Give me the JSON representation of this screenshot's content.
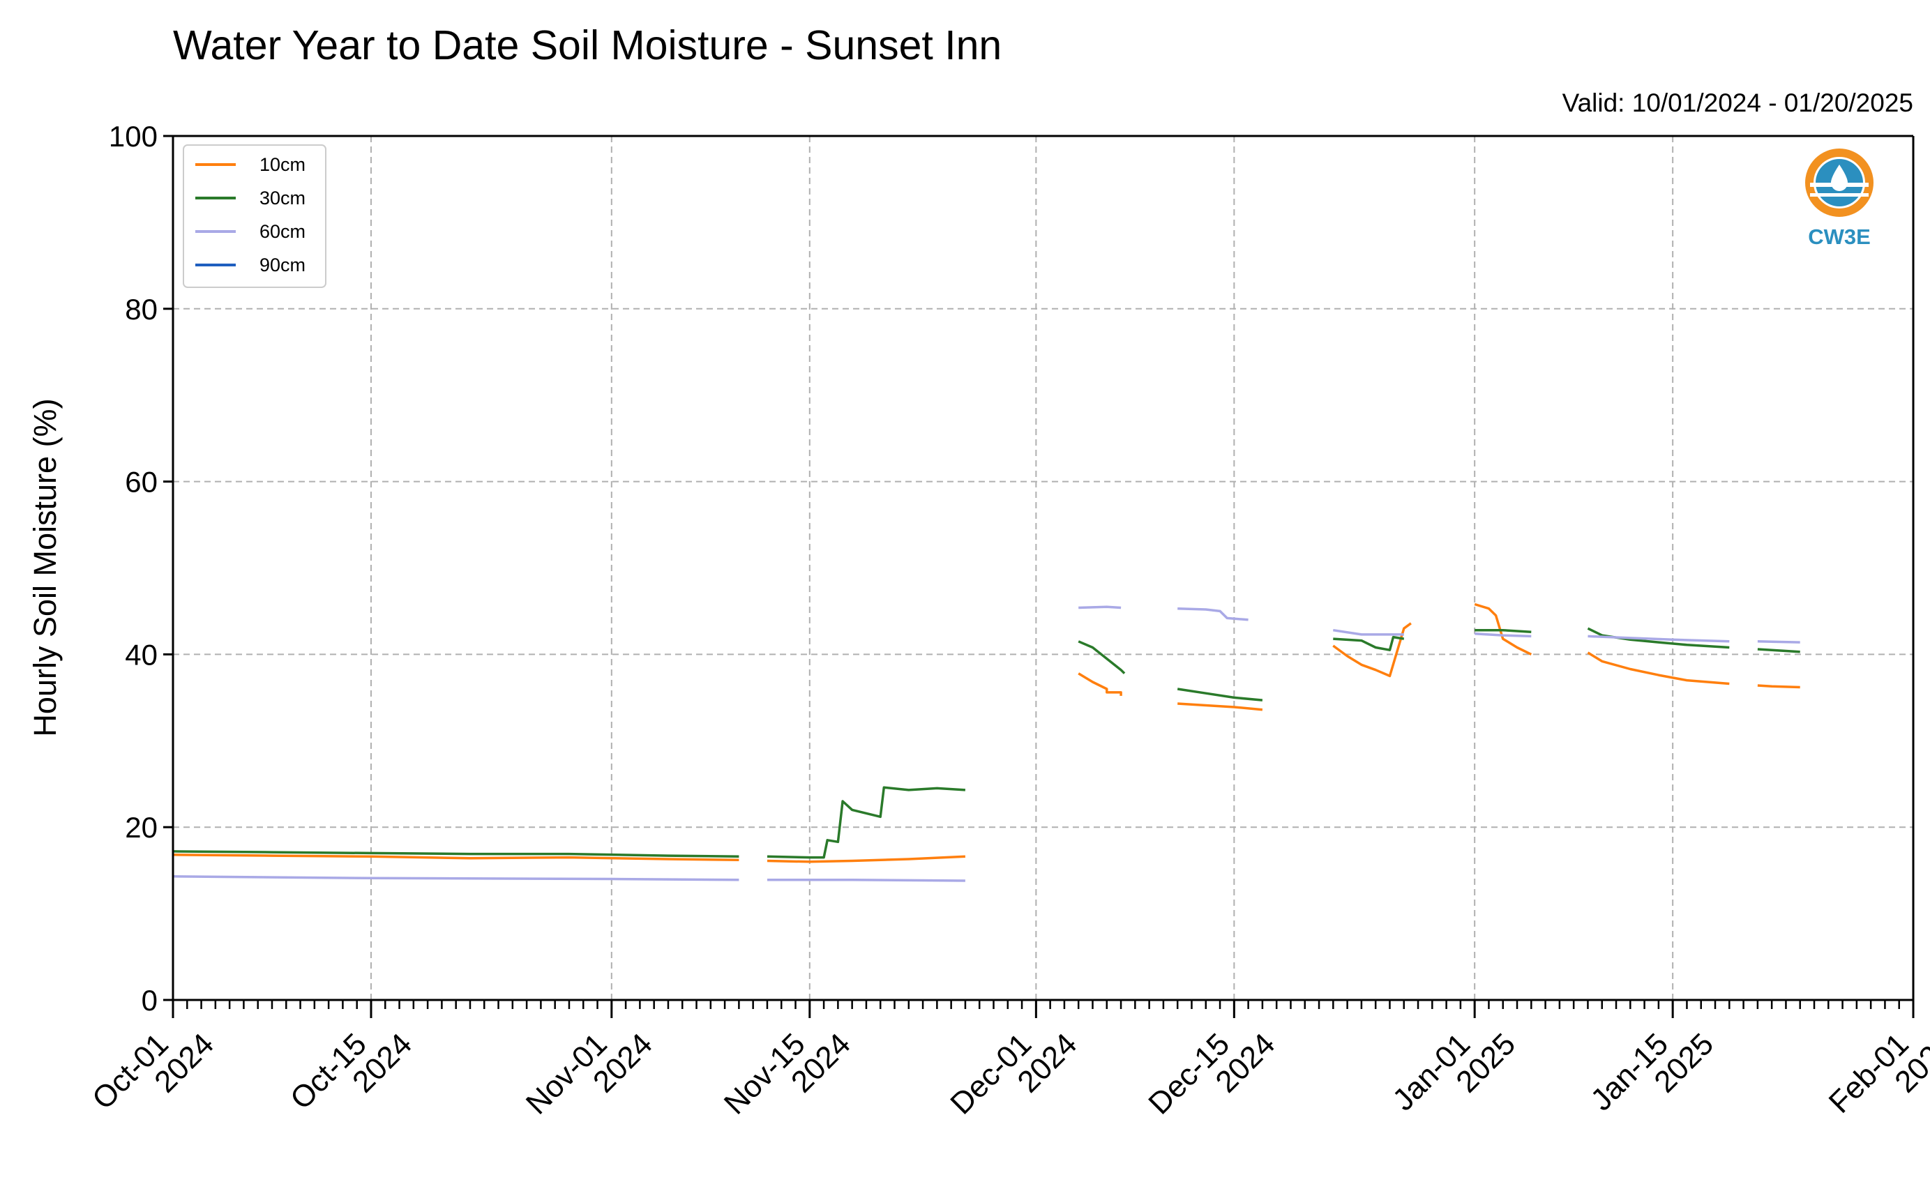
{
  "chart_data": {
    "type": "line",
    "title": "Water Year to Date Soil Moisture - Sunset Inn",
    "subtitle": "Valid: 10/01/2024 - 01/20/2025",
    "ylabel": "Hourly Soil Moisture (%)",
    "xlabel": "",
    "ylim": [
      0,
      100
    ],
    "xlim": [
      "2024-10-01",
      "2025-02-01"
    ],
    "yticks": [
      0,
      20,
      40,
      60,
      80,
      100
    ],
    "xticks": [
      {
        "date": "2024-10-01",
        "line1": "Oct-01",
        "line2": "2024"
      },
      {
        "date": "2024-10-15",
        "line1": "Oct-15",
        "line2": "2024"
      },
      {
        "date": "2024-11-01",
        "line1": "Nov-01",
        "line2": "2024"
      },
      {
        "date": "2024-11-15",
        "line1": "Nov-15",
        "line2": "2024"
      },
      {
        "date": "2024-12-01",
        "line1": "Dec-01",
        "line2": "2024"
      },
      {
        "date": "2024-12-15",
        "line1": "Dec-15",
        "line2": "2024"
      },
      {
        "date": "2025-01-01",
        "line1": "Jan-01",
        "line2": "2025"
      },
      {
        "date": "2025-01-15",
        "line1": "Jan-15",
        "line2": "2025"
      },
      {
        "date": "2025-02-01",
        "line1": "Feb-01",
        "line2": "2025"
      }
    ],
    "grid": true,
    "legend_position": "top-left",
    "series": [
      {
        "name": "10cm",
        "color": "#ff7f0e",
        "segments": [
          [
            [
              "2024-10-01",
              16.8
            ],
            [
              "2024-10-08",
              16.7
            ],
            [
              "2024-10-15",
              16.6
            ],
            [
              "2024-10-22",
              16.4
            ],
            [
              "2024-10-29",
              16.5
            ],
            [
              "2024-11-05",
              16.3
            ],
            [
              "2024-11-10",
              16.2
            ]
          ],
          [
            [
              "2024-11-12",
              16.1
            ],
            [
              "2024-11-15",
              16.0
            ],
            [
              "2024-11-18",
              16.1
            ],
            [
              "2024-11-22",
              16.3
            ],
            [
              "2024-11-26",
              16.6
            ]
          ],
          [
            [
              "2024-12-04",
              37.8
            ],
            [
              "2024-12-05",
              36.8
            ],
            [
              "2024-12-06",
              36.0
            ],
            [
              "2024-12-07",
              35.6
            ],
            [
              "2024-12-06 00:00",
              35.6
            ],
            [
              "2024-12-07",
              35.2
            ]
          ],
          [
            [
              "2024-12-11",
              34.3
            ],
            [
              "2024-12-13",
              34.1
            ],
            [
              "2024-12-15",
              33.9
            ],
            [
              "2024-12-17",
              33.6
            ]
          ],
          [
            [
              "2024-12-22",
              41.0
            ],
            [
              "2024-12-23",
              39.8
            ],
            [
              "2024-12-24",
              38.8
            ],
            [
              "2024-12-25",
              38.2
            ],
            [
              "2024-12-26",
              37.5
            ],
            [
              "2024-12-27",
              43.0
            ],
            [
              "2024-12-27 12:00",
              43.6
            ]
          ],
          [
            [
              "2025-01-01",
              45.8
            ],
            [
              "2025-01-02",
              45.3
            ],
            [
              "2025-01-02 12:00",
              44.5
            ],
            [
              "2025-01-03",
              41.8
            ],
            [
              "2025-01-04",
              40.8
            ],
            [
              "2025-01-05",
              40.0
            ]
          ],
          [
            [
              "2025-01-09",
              40.2
            ],
            [
              "2025-01-10",
              39.2
            ],
            [
              "2025-01-12",
              38.3
            ],
            [
              "2025-01-14",
              37.6
            ],
            [
              "2025-01-16",
              37.0
            ],
            [
              "2025-01-19",
              36.6
            ]
          ],
          [
            [
              "2025-01-21",
              36.4
            ],
            [
              "2025-01-22",
              36.3
            ],
            [
              "2025-01-24",
              36.2
            ]
          ]
        ]
      },
      {
        "name": "30cm",
        "color": "#2a7a2a",
        "segments": [
          [
            [
              "2024-10-01",
              17.2
            ],
            [
              "2024-10-08",
              17.1
            ],
            [
              "2024-10-15",
              17.0
            ],
            [
              "2024-10-22",
              16.9
            ],
            [
              "2024-10-29",
              16.9
            ],
            [
              "2024-11-05",
              16.7
            ],
            [
              "2024-11-10",
              16.6
            ]
          ],
          [
            [
              "2024-11-12",
              16.6
            ],
            [
              "2024-11-15",
              16.5
            ],
            [
              "2024-11-16",
              16.5
            ],
            [
              "2024-11-16 06:00",
              18.5
            ],
            [
              "2024-11-17",
              18.3
            ],
            [
              "2024-11-17 08:00",
              23.0
            ],
            [
              "2024-11-18",
              22.0
            ],
            [
              "2024-11-20",
              21.2
            ],
            [
              "2024-11-20 06:00",
              24.6
            ],
            [
              "2024-11-22",
              24.3
            ],
            [
              "2024-11-24",
              24.5
            ],
            [
              "2024-11-26",
              24.3
            ]
          ],
          [
            [
              "2024-12-04",
              41.5
            ],
            [
              "2024-12-05",
              40.8
            ],
            [
              "2024-12-06",
              39.5
            ],
            [
              "2024-12-07",
              38.2
            ],
            [
              "2024-12-07 06:00",
              37.8
            ]
          ],
          [
            [
              "2024-12-11",
              36.0
            ],
            [
              "2024-12-13",
              35.5
            ],
            [
              "2024-12-15",
              35.0
            ],
            [
              "2024-12-17",
              34.7
            ]
          ],
          [
            [
              "2024-12-22",
              41.8
            ],
            [
              "2024-12-24",
              41.6
            ],
            [
              "2024-12-25",
              40.8
            ],
            [
              "2024-12-26",
              40.5
            ],
            [
              "2024-12-26 06:00",
              42.0
            ],
            [
              "2024-12-27",
              41.8
            ]
          ],
          [
            [
              "2025-01-01",
              42.8
            ],
            [
              "2025-01-03",
              42.8
            ],
            [
              "2025-01-05",
              42.6
            ]
          ],
          [
            [
              "2025-01-09",
              43.0
            ],
            [
              "2025-01-10",
              42.2
            ],
            [
              "2025-01-12",
              41.7
            ],
            [
              "2025-01-14",
              41.4
            ],
            [
              "2025-01-16",
              41.1
            ],
            [
              "2025-01-19",
              40.8
            ]
          ],
          [
            [
              "2025-01-21",
              40.6
            ],
            [
              "2025-01-22",
              40.5
            ],
            [
              "2025-01-24",
              40.3
            ]
          ]
        ]
      },
      {
        "name": "60cm",
        "color": "#a9a9e6",
        "segments": [
          [
            [
              "2024-10-01",
              14.3
            ],
            [
              "2024-10-15",
              14.1
            ],
            [
              "2024-11-01",
              14.0
            ],
            [
              "2024-11-10",
              13.9
            ]
          ],
          [
            [
              "2024-11-12",
              13.9
            ],
            [
              "2024-11-18",
              13.9
            ],
            [
              "2024-11-26",
              13.8
            ]
          ],
          [
            [
              "2024-12-04",
              45.4
            ],
            [
              "2024-12-06",
              45.5
            ],
            [
              "2024-12-07",
              45.4
            ]
          ],
          [
            [
              "2024-12-11",
              45.3
            ],
            [
              "2024-12-13",
              45.2
            ],
            [
              "2024-12-14",
              45.0
            ],
            [
              "2024-12-14 12:00",
              44.2
            ],
            [
              "2024-12-16",
              44.0
            ]
          ],
          [
            [
              "2024-12-22",
              42.8
            ],
            [
              "2024-12-24",
              42.3
            ],
            [
              "2024-12-26",
              42.3
            ],
            [
              "2024-12-27",
              42.3
            ]
          ],
          [
            [
              "2025-01-01",
              42.4
            ],
            [
              "2025-01-03",
              42.2
            ],
            [
              "2025-01-05",
              42.1
            ]
          ],
          [
            [
              "2025-01-09",
              42.1
            ],
            [
              "2025-01-12",
              41.9
            ],
            [
              "2025-01-15",
              41.7
            ],
            [
              "2025-01-19",
              41.5
            ]
          ],
          [
            [
              "2025-01-21",
              41.5
            ],
            [
              "2025-01-24",
              41.4
            ]
          ]
        ]
      },
      {
        "name": "90cm",
        "color": "#1f5fbf",
        "segments": []
      }
    ]
  },
  "logo": {
    "label": "CW3E",
    "ring_color": "#f29120",
    "accent_color": "#2b8fbf"
  }
}
